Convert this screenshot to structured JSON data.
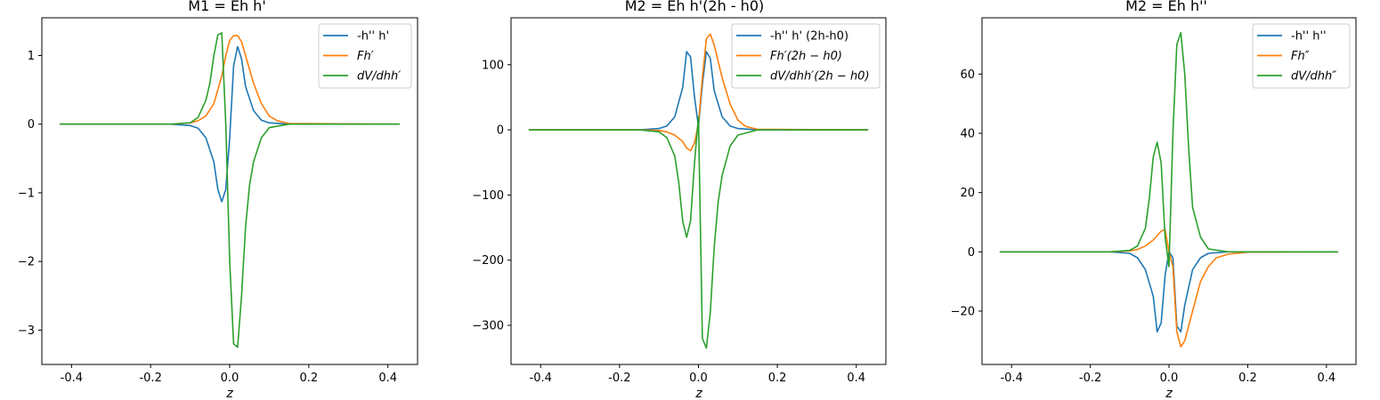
{
  "colors": {
    "blue": "#1f77b4",
    "orange": "#ff7f0e",
    "green": "#2ca02c"
  },
  "chart_data": [
    {
      "type": "line",
      "title": "M1 = Eh h'",
      "xlabel": "z",
      "ylabel": "",
      "xlim": [
        -0.475,
        0.475
      ],
      "ylim": [
        -3.5,
        1.55
      ],
      "xticks": [
        "-0.4",
        "-0.2",
        "0.0",
        "0.2",
        "0.4"
      ],
      "xtick_values": [
        -0.4,
        -0.2,
        0.0,
        0.2,
        0.4
      ],
      "yticks": [
        "1",
        "0",
        "−1",
        "−2",
        "−3"
      ],
      "ytick_values": [
        1,
        0,
        -1,
        -2,
        -3
      ],
      "legend_position": "upper right",
      "series": [
        {
          "name": "-h'' h'",
          "color": "#1f77b4",
          "x": [
            -0.43,
            -0.15,
            -0.1,
            -0.08,
            -0.06,
            -0.04,
            -0.03,
            -0.02,
            -0.01,
            0.0,
            0.01,
            0.02,
            0.03,
            0.04,
            0.06,
            0.08,
            0.1,
            0.15,
            0.43
          ],
          "y": [
            0,
            0,
            -0.02,
            -0.06,
            -0.2,
            -0.55,
            -0.95,
            -1.13,
            -0.95,
            -0.2,
            0.85,
            1.13,
            0.95,
            0.55,
            0.2,
            0.06,
            0.02,
            0,
            0
          ]
        },
        {
          "name": "Fh′",
          "color": "#ff7f0e",
          "x": [
            -0.43,
            -0.15,
            -0.1,
            -0.08,
            -0.06,
            -0.04,
            -0.02,
            -0.01,
            0.0,
            0.01,
            0.02,
            0.03,
            0.04,
            0.06,
            0.08,
            0.1,
            0.12,
            0.15,
            0.43
          ],
          "y": [
            0,
            0,
            0.02,
            0.05,
            0.12,
            0.3,
            0.7,
            1.0,
            1.22,
            1.29,
            1.29,
            1.2,
            1.0,
            0.6,
            0.3,
            0.12,
            0.05,
            0.01,
            0
          ]
        },
        {
          "name": "dV/dhh′",
          "color": "#2ca02c",
          "x": [
            -0.43,
            -0.15,
            -0.1,
            -0.08,
            -0.06,
            -0.05,
            -0.04,
            -0.03,
            -0.02,
            -0.01,
            0.0,
            0.01,
            0.02,
            0.03,
            0.04,
            0.05,
            0.06,
            0.08,
            0.1,
            0.15,
            0.43
          ],
          "y": [
            0,
            0,
            0.02,
            0.1,
            0.35,
            0.6,
            1.0,
            1.3,
            1.33,
            0.0,
            -2.0,
            -3.2,
            -3.25,
            -2.5,
            -1.5,
            -0.9,
            -0.55,
            -0.2,
            -0.05,
            0,
            0
          ]
        }
      ]
    },
    {
      "type": "line",
      "title": "M2 = Eh h'(2h - h0)",
      "xlabel": "z",
      "ylabel": "",
      "xlim": [
        -0.475,
        0.475
      ],
      "ylim": [
        -360,
        172
      ],
      "xticks": [
        "-0.4",
        "-0.2",
        "0.0",
        "0.2",
        "0.4"
      ],
      "xtick_values": [
        -0.4,
        -0.2,
        0.0,
        0.2,
        0.4
      ],
      "yticks": [
        "100",
        "0",
        "−100",
        "−200",
        "−300"
      ],
      "ytick_values": [
        100,
        0,
        -100,
        -200,
        -300
      ],
      "legend_position": "upper right",
      "series": [
        {
          "name": "-h'' h' (2h-h0)",
          "color": "#1f77b4",
          "x": [
            -0.43,
            -0.15,
            -0.1,
            -0.08,
            -0.06,
            -0.04,
            -0.03,
            -0.02,
            -0.01,
            0.0,
            0.01,
            0.02,
            0.03,
            0.04,
            0.06,
            0.08,
            0.1,
            0.15,
            0.43
          ],
          "y": [
            0,
            0,
            2,
            6,
            20,
            65,
            120,
            112,
            50,
            5,
            70,
            120,
            110,
            60,
            20,
            6,
            2,
            0,
            0
          ]
        },
        {
          "name": "Fh′(2h − h0)",
          "color": "#ff7f0e",
          "x": [
            -0.43,
            -0.15,
            -0.1,
            -0.08,
            -0.06,
            -0.04,
            -0.03,
            -0.02,
            -0.01,
            0.0,
            0.01,
            0.02,
            0.03,
            0.04,
            0.06,
            0.08,
            0.1,
            0.12,
            0.15,
            0.43
          ],
          "y": [
            0,
            0,
            -1,
            -3,
            -8,
            -18,
            -28,
            -32,
            -20,
            10,
            80,
            140,
            147,
            130,
            80,
            40,
            15,
            5,
            1,
            0
          ]
        },
        {
          "name": "dV/dhh′(2h − h0)",
          "color": "#2ca02c",
          "x": [
            -0.43,
            -0.15,
            -0.1,
            -0.08,
            -0.06,
            -0.05,
            -0.04,
            -0.03,
            -0.02,
            -0.01,
            0.0,
            0.01,
            0.02,
            0.03,
            0.04,
            0.05,
            0.06,
            0.08,
            0.1,
            0.15,
            0.43
          ],
          "y": [
            0,
            0,
            -3,
            -12,
            -40,
            -80,
            -140,
            -165,
            -140,
            -50,
            20,
            -320,
            -335,
            -280,
            -180,
            -110,
            -70,
            -25,
            -8,
            0,
            0
          ]
        }
      ]
    },
    {
      "type": "line",
      "title": "M2 = Eh h''",
      "xlabel": "z",
      "ylabel": "",
      "xlim": [
        -0.475,
        0.475
      ],
      "ylim": [
        -38,
        79
      ],
      "xticks": [
        "-0.4",
        "-0.2",
        "0.0",
        "0.2",
        "0.4"
      ],
      "xtick_values": [
        -0.4,
        -0.2,
        0.0,
        0.2,
        0.4
      ],
      "yticks": [
        "60",
        "40",
        "20",
        "0",
        "−20"
      ],
      "ytick_values": [
        60,
        40,
        20,
        0,
        -20
      ],
      "legend_position": "upper right",
      "series": [
        {
          "name": "-h'' h''",
          "color": "#1f77b4",
          "x": [
            -0.43,
            -0.15,
            -0.1,
            -0.08,
            -0.06,
            -0.04,
            -0.03,
            -0.02,
            -0.01,
            0.0,
            0.01,
            0.02,
            0.03,
            0.04,
            0.06,
            0.08,
            0.1,
            0.15,
            0.43
          ],
          "y": [
            0,
            0,
            -0.5,
            -2,
            -6,
            -15,
            -27,
            -24,
            -8,
            0,
            -2,
            -25,
            -27,
            -18,
            -6,
            -2,
            -0.5,
            0,
            0
          ]
        },
        {
          "name": "Fh″",
          "color": "#ff7f0e",
          "x": [
            -0.43,
            -0.15,
            -0.1,
            -0.08,
            -0.06,
            -0.04,
            -0.02,
            -0.01,
            0.0,
            0.01,
            0.02,
            0.03,
            0.04,
            0.06,
            0.08,
            0.1,
            0.12,
            0.15,
            0.2,
            0.43
          ],
          "y": [
            0,
            0,
            0.3,
            0.8,
            2,
            4,
            7,
            7.5,
            0,
            -5,
            -27,
            -32,
            -30,
            -20,
            -10,
            -5,
            -2,
            -0.8,
            -0.1,
            0
          ]
        },
        {
          "name": "dV/dhh″",
          "color": "#2ca02c",
          "x": [
            -0.43,
            -0.15,
            -0.1,
            -0.08,
            -0.06,
            -0.05,
            -0.04,
            -0.03,
            -0.02,
            -0.01,
            0.0,
            0.01,
            0.02,
            0.03,
            0.04,
            0.05,
            0.06,
            0.08,
            0.1,
            0.15,
            0.43
          ],
          "y": [
            0,
            0,
            0.5,
            2,
            8,
            18,
            32,
            37,
            30,
            5,
            -5,
            40,
            70,
            74,
            60,
            35,
            15,
            5,
            1,
            0,
            0
          ]
        }
      ]
    }
  ]
}
